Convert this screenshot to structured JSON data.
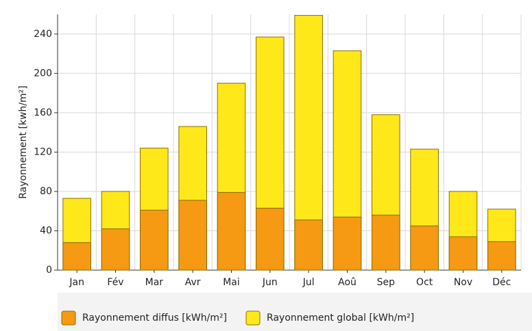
{
  "chart_data": {
    "type": "bar",
    "y_label": "Rayonnement [kwh/m²]",
    "categories": [
      "Jan",
      "Fév",
      "Mar",
      "Avr",
      "Mai",
      "Jun",
      "Jul",
      "Aoû",
      "Sep",
      "Oct",
      "Nov",
      "Déc"
    ],
    "series": [
      {
        "name": "Rayonnement diffus [kWh/m²]",
        "color": "#f59a12",
        "values": [
          28,
          42,
          61,
          71,
          79,
          63,
          51,
          54,
          56,
          45,
          34,
          29
        ]
      },
      {
        "name": "Rayonnement global  [kWh/m²]",
        "color": "#ffe81a",
        "values": [
          73,
          80,
          124,
          146,
          190,
          237,
          259,
          223,
          158,
          123,
          80,
          62
        ]
      }
    ],
    "ylim": [
      0,
      260
    ],
    "yticks": [
      0,
      40,
      80,
      120,
      160,
      200,
      240
    ],
    "grid": true
  }
}
